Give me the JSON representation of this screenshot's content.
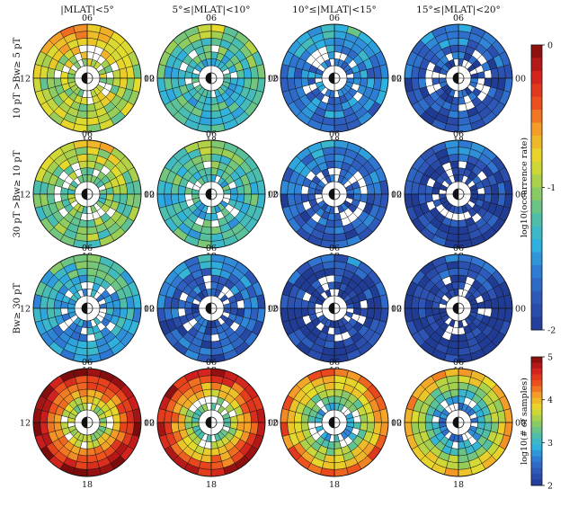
{
  "chart_data": {
    "type": "heatmap",
    "subtype": "polar (MLT sectors × L-shell rings)",
    "column_titles": [
      "|MLAT|<5°",
      "5°≤|MLAT|<10°",
      "10°≤|MLAT|<15°",
      "15°≤|MLAT|<20°"
    ],
    "row_labels": [
      "10 pT >Bw≥ 5 pT",
      "30 pT >Bw≥ 10 pT",
      "Bw≥ 30 pT",
      ""
    ],
    "mlt_labels": {
      "top": "06",
      "left": "12",
      "right": "00",
      "bottom": "18"
    },
    "rings": 6,
    "sectors": 24,
    "colorbars": [
      {
        "label": "log10(occurrence rate)",
        "ticks": [
          "0",
          "-1",
          "-2"
        ],
        "range": [
          -2,
          0
        ],
        "applies_to_rows": [
          0,
          1,
          2
        ]
      },
      {
        "label": "log10(# of samples)",
        "ticks": [
          "5",
          "4",
          "3",
          "2"
        ],
        "range": [
          2,
          5
        ],
        "applies_to_rows": [
          3
        ]
      }
    ],
    "panels_profile": [
      [
        -0.95,
        -1.3,
        -1.6,
        -1.8
      ],
      [
        -1.1,
        -1.3,
        -1.75,
        -1.9
      ],
      [
        -1.45,
        -1.75,
        -1.95,
        -1.98
      ],
      [
        4.2,
        4.0,
        3.6,
        3.3
      ]
    ],
    "colormap_stops": [
      "#203c94",
      "#2e54b5",
      "#2f79d4",
      "#2fb3e0",
      "#54c0a0",
      "#9acd55",
      "#e6dc2a",
      "#f4a028",
      "#ec4c1d",
      "#d01e1e",
      "#7c0c0c"
    ]
  }
}
